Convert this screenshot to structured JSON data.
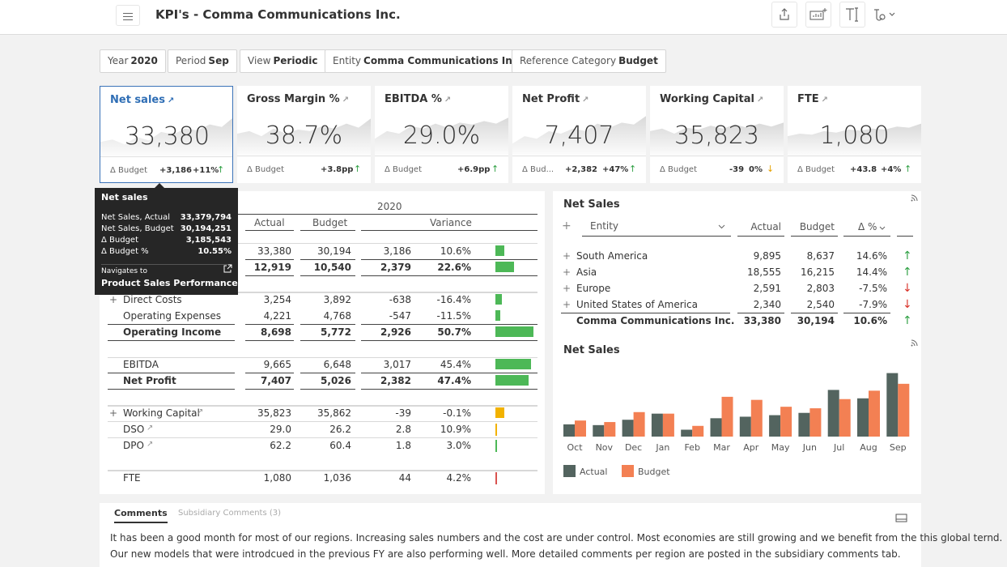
{
  "app": {
    "title": "KPI's - Comma Communications Inc."
  },
  "toolbar": {
    "icons": [
      "share-icon",
      "chart-add-icon",
      "text-icon",
      "style-icon"
    ]
  },
  "filters": [
    {
      "label": "Year",
      "value": "2020"
    },
    {
      "label": "Period",
      "value": "Sep"
    },
    {
      "label": "View",
      "value": "Periodic"
    },
    {
      "label": "Entity",
      "value": "Comma Communications Inc."
    },
    {
      "label": "Reference Category",
      "value": "Budget"
    }
  ],
  "kpis": [
    {
      "title": "Net sales",
      "value": "33,380",
      "delta_label": "Δ Budget",
      "delta_abs": "+3,186",
      "delta_pct": "+11%",
      "arrow": "↑",
      "arrow_color": "#2ea043",
      "spark": [
        0.35,
        0.4,
        0.3,
        0.45,
        0.38,
        0.55,
        0.5,
        0.62,
        0.58,
        0.7,
        0.65,
        0.85
      ]
    },
    {
      "title": "Gross Margin %",
      "value": "38.7%",
      "delta_label": "Δ Budget",
      "delta_abs": "+3.8pp",
      "delta_pct": "",
      "arrow": "↑",
      "arrow_color": "#2ea043",
      "spark": [
        0.5,
        0.55,
        0.45,
        0.6,
        0.5,
        0.58,
        0.55,
        0.65,
        0.6,
        0.7,
        0.62,
        0.8
      ]
    },
    {
      "title": "EBITDA %",
      "value": "29.0%",
      "delta_label": "Δ Budget",
      "delta_abs": "+6.9pp",
      "delta_pct": "",
      "arrow": "↑",
      "arrow_color": "#2ea043",
      "spark": [
        0.4,
        0.55,
        0.5,
        0.65,
        0.6,
        0.7,
        0.62,
        0.72,
        0.68,
        0.75,
        0.7,
        0.82
      ]
    },
    {
      "title": "Net Profit",
      "value": "7,407",
      "delta_label": "Δ Bud...",
      "delta_abs": "+2,382",
      "delta_pct": "+47%",
      "arrow": "↑",
      "arrow_color": "#2ea043",
      "spark": [
        0.3,
        0.45,
        0.4,
        0.55,
        0.5,
        0.6,
        0.55,
        0.7,
        0.62,
        0.72,
        0.68,
        0.85
      ]
    },
    {
      "title": "Working Capital",
      "value": "35,823",
      "delta_label": "Δ Budget",
      "delta_abs": "-39",
      "delta_pct": "0%",
      "arrow": "↓",
      "arrow_color": "#e6a100",
      "spark": [
        0.55,
        0.6,
        0.5,
        0.62,
        0.58,
        0.66,
        0.6,
        0.68,
        0.62,
        0.7,
        0.64,
        0.72
      ]
    },
    {
      "title": "FTE",
      "value": "1,080",
      "delta_label": "Δ Budget",
      "delta_abs": "+43.8",
      "delta_pct": "+4%",
      "arrow": "↑",
      "arrow_color": "#2ea043",
      "spark": [
        0.45,
        0.5,
        0.48,
        0.55,
        0.52,
        0.58,
        0.56,
        0.6,
        0.58,
        0.64,
        0.62,
        0.7
      ]
    }
  ],
  "pl": {
    "year": "2020",
    "headers": {
      "actual": "Actual",
      "budget": "Budget",
      "variance": "Variance"
    },
    "rows": [
      {
        "expand": "",
        "label": "",
        "actual": "33,380",
        "budget": "30,194",
        "var": "3,186",
        "pct": "10.6%",
        "bar": 0.21,
        "color": "#4db857",
        "bold": false
      },
      {
        "expand": "",
        "label": "",
        "actual": "12,919",
        "budget": "10,540",
        "var": "2,379",
        "pct": "22.6%",
        "bar": 0.45,
        "color": "#4db857",
        "bold": true
      },
      {
        "expand": "+",
        "label": "Direct Costs",
        "actual": "3,254",
        "budget": "3,892",
        "var": "-638",
        "pct": "-16.4%",
        "bar": 0.16,
        "color": "#4db857",
        "bold": false
      },
      {
        "expand": "",
        "label": "Operating Expenses",
        "actual": "4,221",
        "budget": "4,768",
        "var": "-547",
        "pct": "-11.5%",
        "bar": 0.12,
        "color": "#4db857",
        "bold": false
      },
      {
        "expand": "",
        "label": "Operating Income",
        "actual": "8,698",
        "budget": "5,772",
        "var": "2,926",
        "pct": "50.7%",
        "bar": 0.9,
        "color": "#4db857",
        "bold": true
      },
      {
        "expand": "",
        "label": "EBITDA",
        "actual": "9,665",
        "budget": "6,648",
        "var": "3,017",
        "pct": "45.4%",
        "bar": 0.84,
        "color": "#4db857",
        "bold": false
      },
      {
        "expand": "",
        "label": "Net Profit",
        "actual": "7,407",
        "budget": "5,026",
        "var": "2,382",
        "pct": "47.4%",
        "bar": 0.78,
        "color": "#4db857",
        "bold": true
      },
      {
        "expand": "+",
        "label": "Working Capital",
        "actual": "35,823",
        "budget": "35,862",
        "var": "-39",
        "pct": "-0.1%",
        "bar": 0.22,
        "color": "#f2b200",
        "bold": false,
        "ext": true
      },
      {
        "expand": "",
        "label": "DSO",
        "actual": "29.0",
        "budget": "26.2",
        "var": "2.8",
        "pct": "10.9%",
        "bar": 0.02,
        "color": "#f2b200",
        "bold": false,
        "ext": true
      },
      {
        "expand": "",
        "label": "DPO",
        "actual": "62.2",
        "budget": "60.4",
        "var": "1.8",
        "pct": "3.0%",
        "bar": 0.02,
        "color": "#4db857",
        "bold": false,
        "ext": true
      },
      {
        "expand": "",
        "label": "FTE",
        "actual": "1,080",
        "budget": "1,036",
        "var": "44",
        "pct": "4.2%",
        "bar": 0.02,
        "color": "#d9534f",
        "bold": false
      }
    ]
  },
  "tooltip": {
    "title": "Net sales",
    "rows": [
      {
        "k": "Net Sales, Actual",
        "v": "33,379,794"
      },
      {
        "k": "Net Sales, Budget",
        "v": "30,194,251"
      },
      {
        "k": "Δ Budget",
        "v": "3,185,543"
      },
      {
        "k": "Δ Budget %",
        "v": "10.55%"
      }
    ],
    "nav_label": "Navigates to",
    "nav_target": "Product Sales Performance"
  },
  "region_table": {
    "title": "Net Sales",
    "dropdown": "Entity",
    "headers": {
      "actual": "Actual",
      "budget": "Budget",
      "pct": "Δ %"
    },
    "rows": [
      {
        "expand": "+",
        "label": "South America",
        "actual": "9,895",
        "budget": "8,637",
        "pct": "14.6%",
        "arrow": "↑",
        "color": "#2ea043"
      },
      {
        "expand": "+",
        "label": "Asia",
        "actual": "18,555",
        "budget": "16,215",
        "pct": "14.4%",
        "arrow": "↑",
        "color": "#2ea043"
      },
      {
        "expand": "+",
        "label": "Europe",
        "actual": "2,591",
        "budget": "2,803",
        "pct": "-7.5%",
        "arrow": "↓",
        "color": "#d9342b"
      },
      {
        "expand": "+",
        "label": "United States of America",
        "actual": "2,340",
        "budget": "2,540",
        "pct": "-7.9%",
        "arrow": "↓",
        "color": "#d9342b"
      }
    ],
    "total": {
      "label": "Comma Communications Inc.",
      "actual": "33,380",
      "budget": "30,194",
      "pct": "10.6%",
      "arrow": "↑",
      "color": "#2ea043"
    }
  },
  "chart_data": {
    "type": "bar",
    "title": "Net Sales",
    "categories": [
      "Oct",
      "Nov",
      "Dec",
      "Jan",
      "Feb",
      "Mar",
      "Apr",
      "May",
      "Jun",
      "Jul",
      "Aug",
      "Sep"
    ],
    "series": [
      {
        "name": "Actual",
        "color": "#53645f",
        "values": [
          16,
          15,
          22,
          30,
          9,
          24,
          26,
          28,
          31,
          61,
          50,
          83
        ]
      },
      {
        "name": "Budget",
        "color": "#f38053",
        "values": [
          21,
          19,
          32,
          30,
          14,
          52,
          48,
          39,
          37,
          49,
          60,
          69
        ]
      }
    ],
    "ylim": [
      0,
      90
    ],
    "grid": false,
    "legend": "bottom-left"
  },
  "comments": {
    "tab_active": "Comments",
    "tab_inactive": "Subsidiary Comments (3)",
    "line1": "It has been a good month for most of our regions. Increasing sales numbers and the cost are under control. Most economies are still growing and we benefit from the this global ternd.",
    "line2": "Our new models that were introdcued in the previous FY are also performing well. More detailed comments per region are posted in the subsidiary comments tab."
  }
}
